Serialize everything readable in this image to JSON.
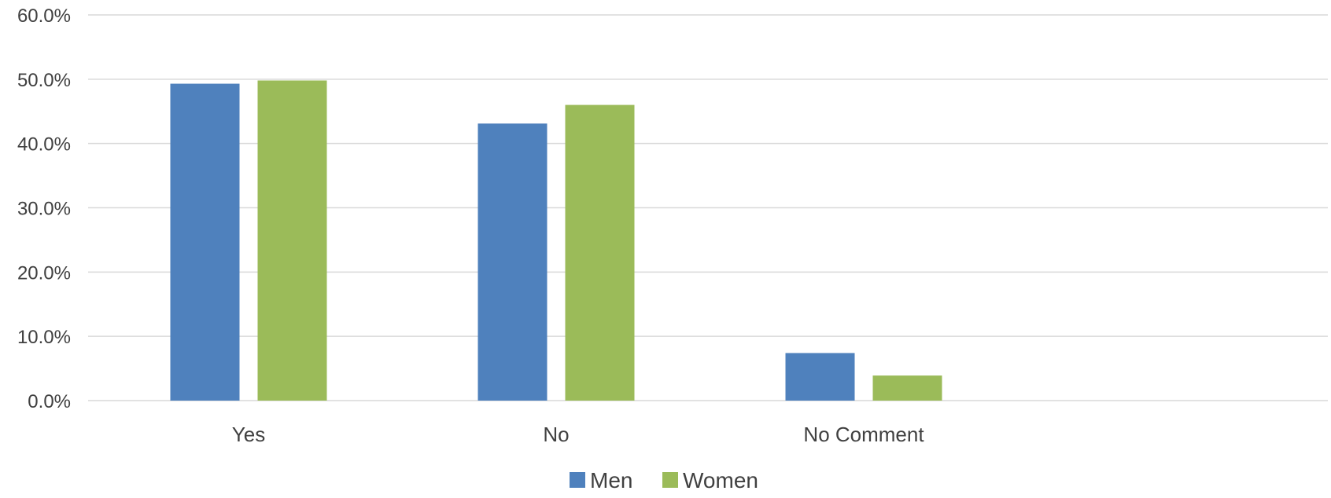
{
  "chart_data": {
    "type": "bar",
    "categories": [
      "Yes",
      "No",
      "No Comment"
    ],
    "series": [
      {
        "name": "Men",
        "color": "#4f81bd",
        "values": [
          49.3,
          43.1,
          7.4
        ]
      },
      {
        "name": "Women",
        "color": "#9bbb59",
        "values": [
          49.8,
          46.0,
          3.9
        ]
      }
    ],
    "y_ticks": [
      "0.0%",
      "10.0%",
      "20.0%",
      "30.0%",
      "40.0%",
      "50.0%",
      "60.0%"
    ],
    "ylim": [
      0,
      60
    ],
    "y_unit": "%",
    "grid": true,
    "legend_position": "bottom-center",
    "title": "",
    "xlabel": "",
    "ylabel": ""
  }
}
